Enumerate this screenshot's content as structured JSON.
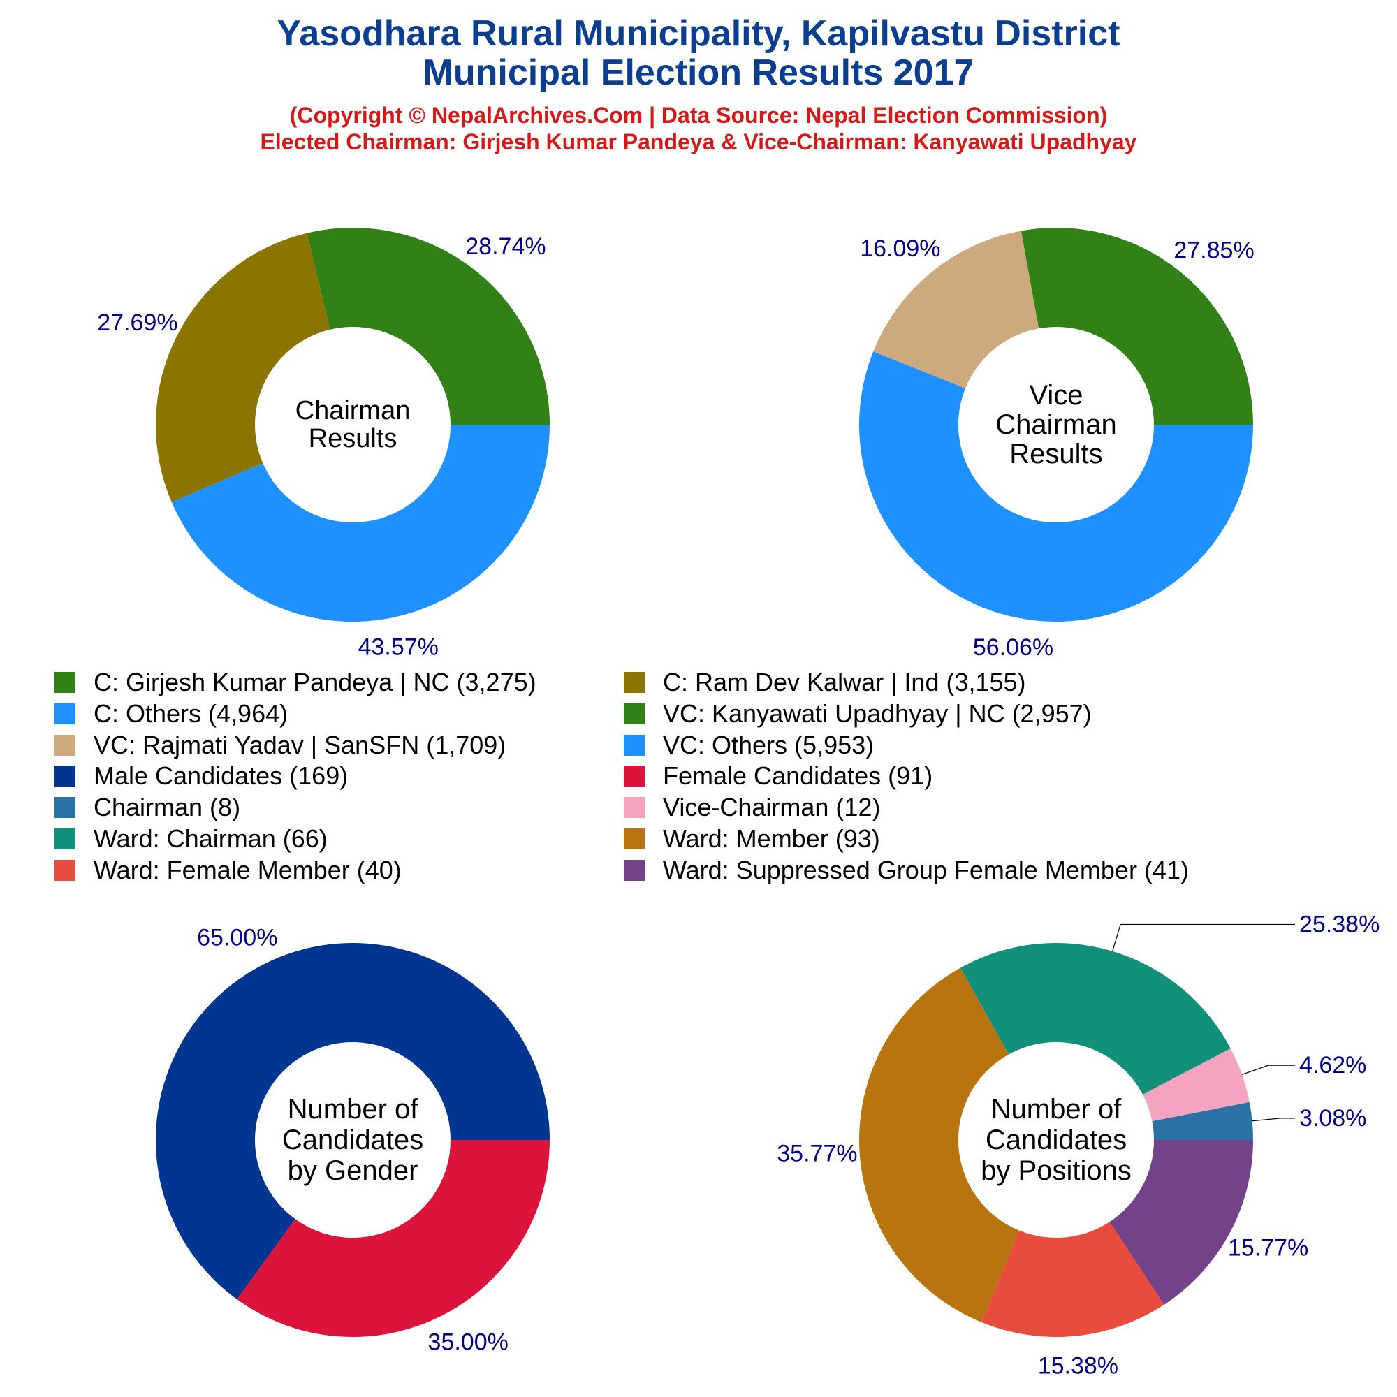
{
  "header": {
    "title_line1": "Yasodhara Rural Municipality, Kapilvastu District",
    "title_line2": "Municipal Election Results 2017",
    "subtitle_line1": "(Copyright © NepalArchives.Com | Data Source: Nepal Election Commission)",
    "subtitle_line2": "Elected Chairman: Girjesh Kumar Pandeya & Vice-Chairman: Kanyawati Upadhyay"
  },
  "legend": [
    {
      "label": "C: Girjesh Kumar Pandeya | NC (3,275)",
      "color": "#318117"
    },
    {
      "label": "C: Ram Dev Kalwar | Ind (3,155)",
      "color": "#8b7500"
    },
    {
      "label": "C: Others (4,964)",
      "color": "#1f90ff"
    },
    {
      "label": "VC: Kanyawati Upadhyay | NC (2,957)",
      "color": "#318117"
    },
    {
      "label": "VC: Rajmati Yadav | SanSFN (1,709)",
      "color": "#cdaa7d"
    },
    {
      "label": "VC: Others (5,953)",
      "color": "#1f90ff"
    },
    {
      "label": "Male Candidates (169)",
      "color": "#00368f"
    },
    {
      "label": "Female Candidates (91)",
      "color": "#dc143c"
    },
    {
      "label": "Chairman (8)",
      "color": "#2a72a3"
    },
    {
      "label": "Vice-Chairman (12)",
      "color": "#f5a3c1"
    },
    {
      "label": "Ward: Chairman (66)",
      "color": "#12907a"
    },
    {
      "label": "Ward: Member (93)",
      "color": "#b8750f"
    },
    {
      "label": "Ward: Female Member (40)",
      "color": "#e84c3c"
    },
    {
      "label": "Ward: Suppressed Group Female Member (41)",
      "color": "#744289"
    }
  ],
  "chart_data": [
    {
      "type": "pie",
      "donut": true,
      "center_label": [
        "Chairman",
        "Results"
      ],
      "slices": [
        {
          "name": "C: Girjesh Kumar Pandeya | NC",
          "value": 3275,
          "percent_label": "28.74%",
          "color": "#318117"
        },
        {
          "name": "C: Ram Dev Kalwar | Ind",
          "value": 3155,
          "percent_label": "27.69%",
          "color": "#8b7500"
        },
        {
          "name": "C: Others",
          "value": 4964,
          "percent_label": "43.57%",
          "color": "#1f90ff"
        }
      ]
    },
    {
      "type": "pie",
      "donut": true,
      "center_label": [
        "Vice",
        "Chairman",
        "Results"
      ],
      "slices": [
        {
          "name": "VC: Kanyawati Upadhyay | NC",
          "value": 2957,
          "percent_label": "27.85%",
          "color": "#318117"
        },
        {
          "name": "VC: Rajmati Yadav | SanSFN",
          "value": 1709,
          "percent_label": "16.09%",
          "color": "#cdaa7d"
        },
        {
          "name": "VC: Others",
          "value": 5953,
          "percent_label": "56.06%",
          "color": "#1f90ff"
        }
      ]
    },
    {
      "type": "pie",
      "donut": true,
      "center_label": [
        "Number of",
        "Candidates",
        "by Gender"
      ],
      "slices": [
        {
          "name": "Male Candidates",
          "value": 169,
          "percent_label": "65.00%",
          "color": "#00368f"
        },
        {
          "name": "Female Candidates",
          "value": 91,
          "percent_label": "35.00%",
          "color": "#dc143c"
        }
      ]
    },
    {
      "type": "pie",
      "donut": true,
      "center_label": [
        "Number of",
        "Candidates",
        "by Positions"
      ],
      "slices": [
        {
          "name": "Chairman",
          "value": 8,
          "percent_label": "3.08%",
          "color": "#2a72a3"
        },
        {
          "name": "Vice-Chairman",
          "value": 12,
          "percent_label": "4.62%",
          "color": "#f5a3c1"
        },
        {
          "name": "Ward: Chairman",
          "value": 66,
          "percent_label": "25.38%",
          "color": "#12907a"
        },
        {
          "name": "Ward: Member",
          "value": 93,
          "percent_label": "35.77%",
          "color": "#b8750f"
        },
        {
          "name": "Ward: Female Member",
          "value": 40,
          "percent_label": "15.38%",
          "color": "#e84c3c"
        },
        {
          "name": "Ward: Suppressed Group Female Member",
          "value": 41,
          "percent_label": "15.77%",
          "color": "#744289"
        }
      ]
    }
  ]
}
